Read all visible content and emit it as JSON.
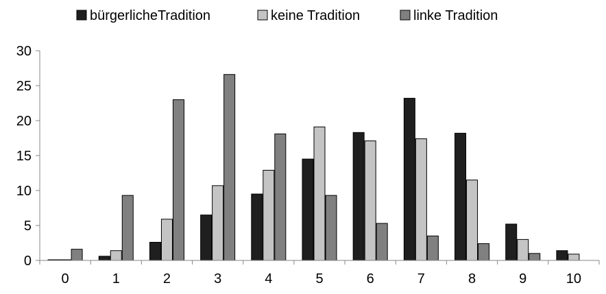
{
  "chart_data": {
    "type": "bar",
    "categories": [
      "0",
      "1",
      "2",
      "3",
      "4",
      "5",
      "6",
      "7",
      "8",
      "9",
      "10"
    ],
    "series": [
      {
        "name": "bürgerlicheTradition",
        "color": "#1f1f1f",
        "values": [
          0.1,
          0.6,
          2.6,
          6.5,
          9.5,
          14.5,
          18.3,
          23.2,
          18.2,
          5.2,
          1.4
        ]
      },
      {
        "name": "keine Tradition",
        "color": "#c4c4c4",
        "values": [
          0.1,
          1.4,
          5.9,
          10.7,
          12.9,
          19.1,
          17.1,
          17.4,
          11.5,
          3.0,
          0.9
        ]
      },
      {
        "name": "linke Tradition",
        "color": "#808080",
        "values": [
          1.6,
          9.3,
          23.0,
          26.6,
          18.1,
          9.3,
          5.3,
          3.5,
          2.4,
          1.0,
          null
        ]
      }
    ],
    "ylim": [
      0,
      30
    ],
    "yticks": [
      0,
      5,
      10,
      15,
      20,
      25,
      30
    ],
    "grid": false,
    "legend_position": "top"
  }
}
